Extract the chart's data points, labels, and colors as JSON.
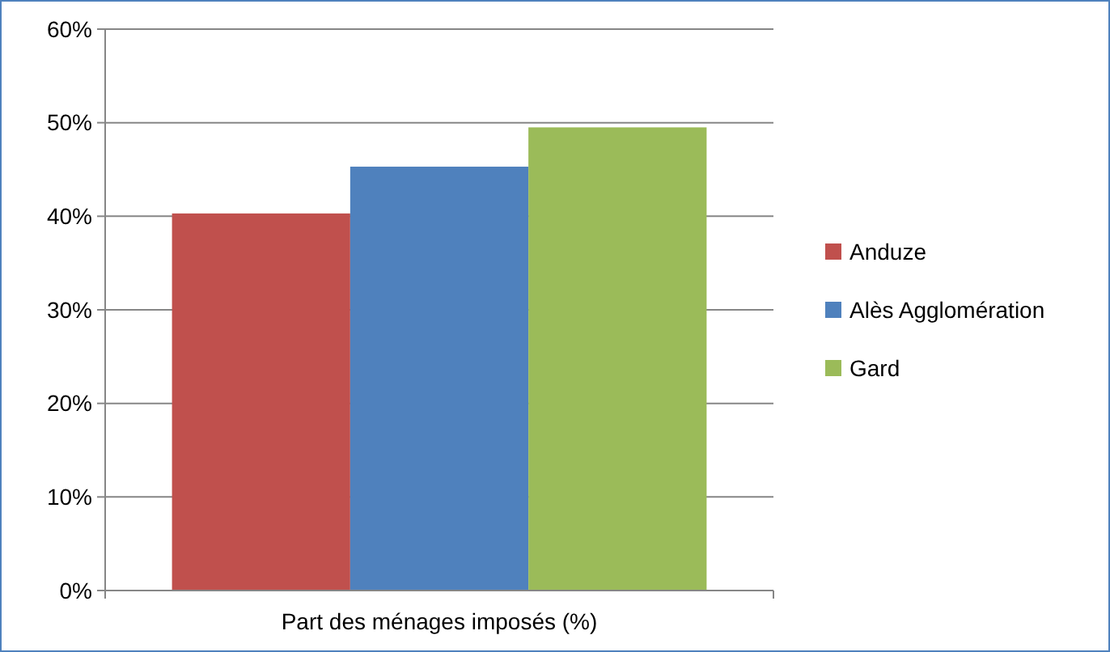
{
  "chart_data": {
    "type": "bar",
    "categories": [
      "Part des ménages imposés (%)"
    ],
    "series": [
      {
        "name": "Anduze",
        "color": "#c0504d",
        "values": [
          40.3
        ]
      },
      {
        "name": "Alès Agglomération",
        "color": "#4f81bd",
        "values": [
          45.3
        ]
      },
      {
        "name": "Gard",
        "color": "#9bbb59",
        "values": [
          49.5
        ]
      }
    ],
    "ylim": [
      0,
      60
    ],
    "yticks": [
      {
        "value": 0,
        "label": "0%"
      },
      {
        "value": 10,
        "label": "10%"
      },
      {
        "value": 20,
        "label": "20%"
      },
      {
        "value": 30,
        "label": "30%"
      },
      {
        "value": 40,
        "label": "40%"
      },
      {
        "value": 50,
        "label": "50%"
      },
      {
        "value": 60,
        "label": "60%"
      }
    ],
    "grid": "y",
    "legend": "right"
  }
}
